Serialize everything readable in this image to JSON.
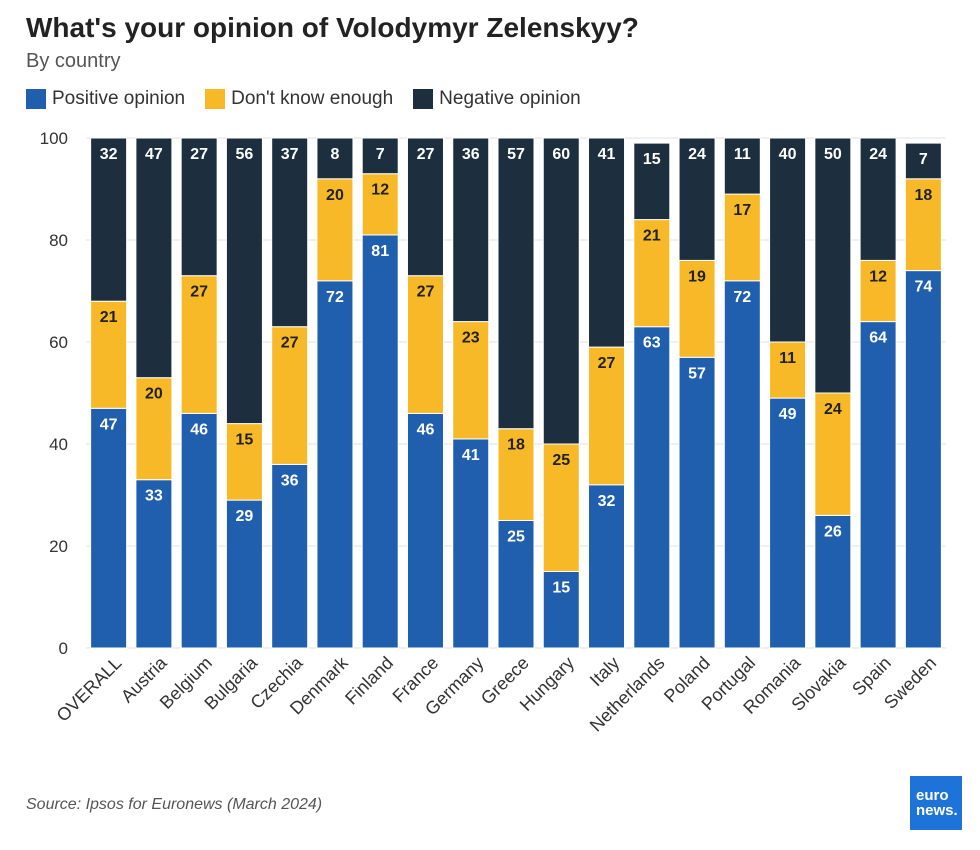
{
  "header": {
    "title": "What's your opinion of Volodymyr Zelenskyy?",
    "subtitle": "By country"
  },
  "footer": {
    "source": "Source: Ipsos for Euronews (March 2024)",
    "logo_line1": "euro",
    "logo_line2": "news."
  },
  "colors": {
    "positive": "#1f5fae",
    "dont_know": "#f7b928",
    "negative": "#1d2f3e"
  },
  "chart_data": {
    "type": "bar",
    "stacked": true,
    "title": "What's your opinion of Volodymyr Zelenskyy?",
    "subtitle": "By country",
    "categories": [
      "OVERALL",
      "Austria",
      "Belgium",
      "Bulgaria",
      "Czechia",
      "Denmark",
      "Finland",
      "France",
      "Germany",
      "Greece",
      "Hungary",
      "Italy",
      "Netherlands",
      "Poland",
      "Portugal",
      "Romania",
      "Slovakia",
      "Spain",
      "Sweden"
    ],
    "series": [
      {
        "name": "Positive opinion",
        "color": "#1f5fae",
        "values": [
          47,
          33,
          46,
          29,
          36,
          72,
          81,
          46,
          41,
          25,
          15,
          32,
          63,
          57,
          72,
          49,
          26,
          64,
          74
        ]
      },
      {
        "name": "Don't know enough",
        "color": "#f7b928",
        "values": [
          21,
          20,
          27,
          15,
          27,
          20,
          12,
          27,
          23,
          18,
          25,
          27,
          21,
          19,
          17,
          11,
          24,
          12,
          18
        ]
      },
      {
        "name": "Negative opinion",
        "color": "#1d2f3e",
        "values": [
          32,
          47,
          27,
          56,
          37,
          8,
          7,
          27,
          36,
          57,
          60,
          41,
          15,
          24,
          11,
          40,
          50,
          24,
          7
        ]
      }
    ],
    "ylim": [
      0,
      100
    ],
    "yticks": [
      0,
      20,
      40,
      60,
      80,
      100
    ],
    "grid": true,
    "legend_position": "top-left",
    "source": "Source: Ipsos for Euronews (March 2024)"
  }
}
